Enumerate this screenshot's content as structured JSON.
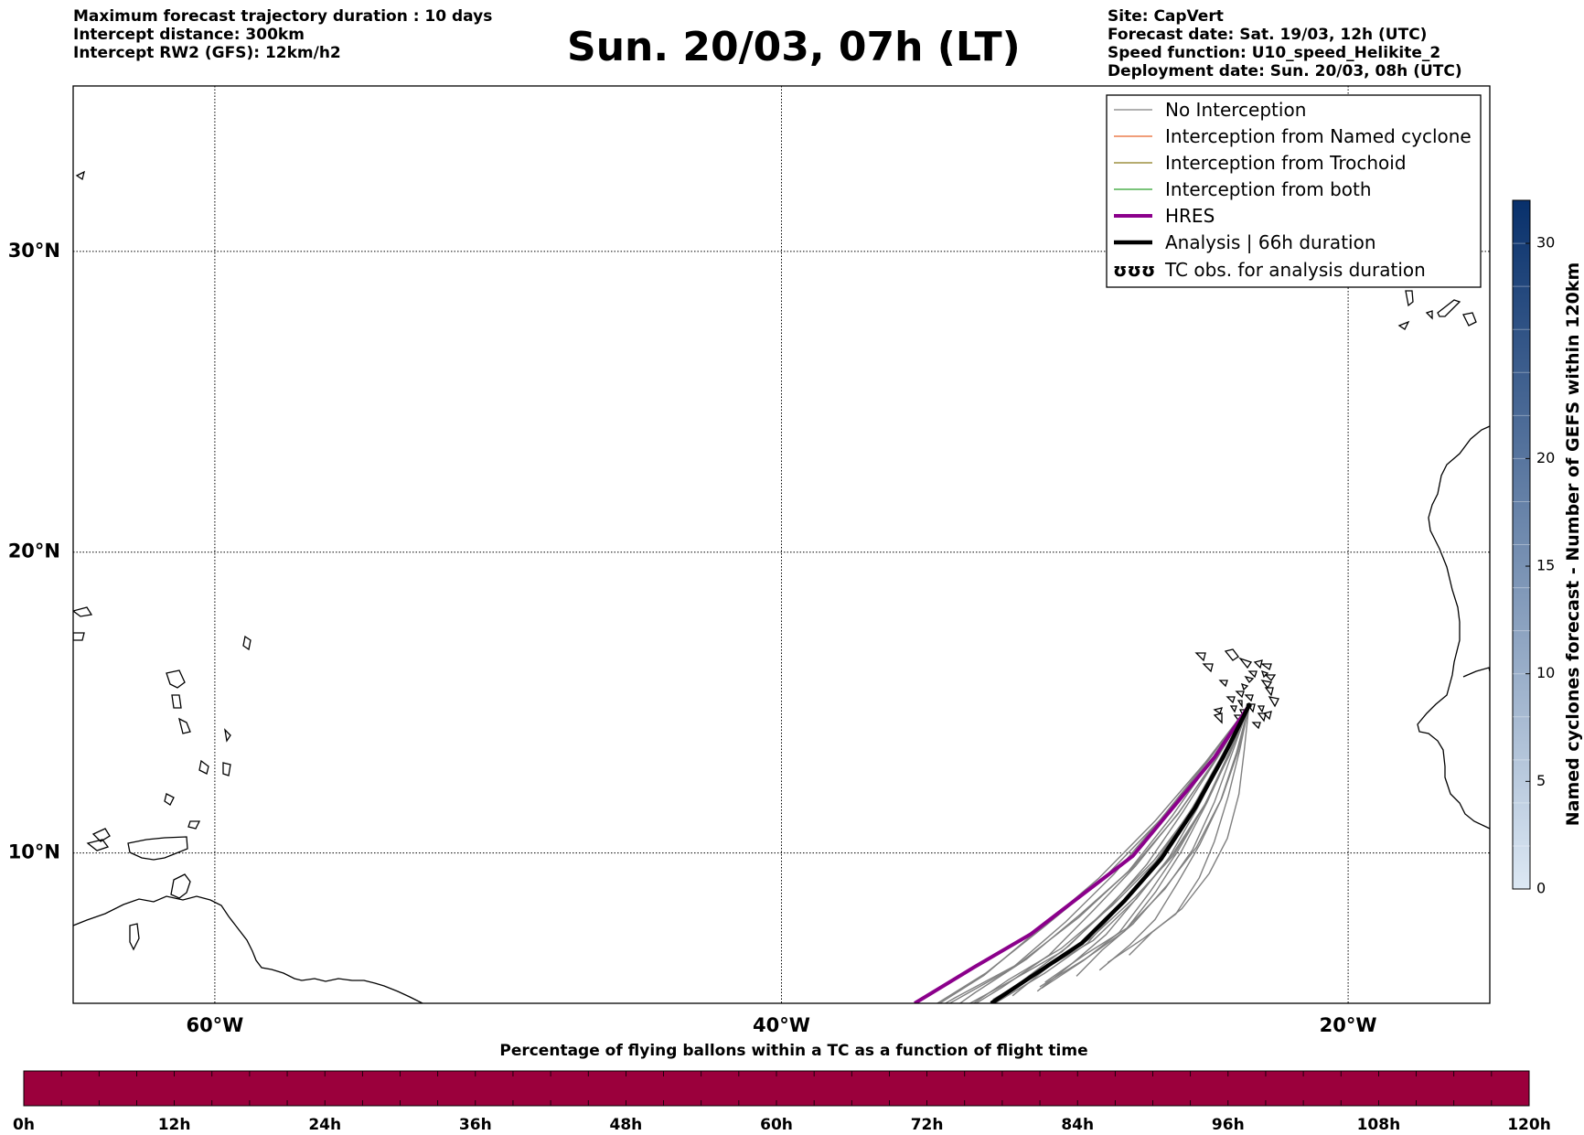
{
  "header": {
    "left": [
      "Maximum forecast trajectory duration : 10 days",
      "Intercept distance: 300km",
      "Intercept RW2 (GFS):  12km/h2"
    ],
    "title": "Sun. 20/03, 07h (LT)",
    "right": [
      "Site: CapVert",
      "Forecast date: Sat. 19/03, 12h (UTC)",
      "Speed function: U10_speed_Helikite_2",
      "Deployment date: Sun. 20/03, 08h (UTC)"
    ]
  },
  "map": {
    "lat_labels": [
      "30°N",
      "20°N",
      "10°N"
    ],
    "lon_labels": [
      "60°W",
      "40°W",
      "20°W"
    ],
    "lat_values": [
      30,
      20,
      10
    ],
    "lon_values": [
      -60,
      -40,
      -20
    ],
    "extent": {
      "lon_min": -65,
      "lon_max": -15,
      "lat_min": 5,
      "lat_max": 35.5
    },
    "grid": true,
    "launch_site": {
      "lon": -23.5,
      "lat": 14.9
    }
  },
  "legend": {
    "placement": "top-right",
    "items": [
      {
        "label": "No Interception",
        "color": "#808080",
        "style": "thin"
      },
      {
        "label": "Interception from Named cyclone",
        "color": "#e8632b",
        "style": "thin"
      },
      {
        "label": "Interception from Trochoid",
        "color": "#8a7a1a",
        "style": "thin"
      },
      {
        "label": "Interception from both",
        "color": "#2ca02c",
        "style": "thin"
      },
      {
        "label": "HRES",
        "color": "#8b008b",
        "style": "thick"
      },
      {
        "label": "Analysis | 66h duration",
        "color": "#000000",
        "style": "thick"
      },
      {
        "label": "TC obs. for analysis duration",
        "color": "#000000",
        "style": "symbol",
        "symbol": "ʊʊʊ"
      }
    ]
  },
  "colorbar": {
    "label": "Named cyclones forecast - Number of GEFS within 120km",
    "ticks": [
      "0",
      "5",
      "10",
      "15",
      "20",
      "30"
    ],
    "tick_values": [
      0,
      5,
      10,
      15,
      20,
      30
    ],
    "min": 0,
    "max": 32,
    "color_low": "#dce8f4",
    "color_high": "#08306b"
  },
  "time_bar": {
    "title": "Percentage of flying ballons within a TC as a function of flight time",
    "ticks": [
      "0h",
      "12h",
      "24h",
      "36h",
      "48h",
      "60h",
      "72h",
      "84h",
      "96h",
      "108h",
      "120h"
    ],
    "fill_color": "#9b003c"
  },
  "chart_data": {
    "type": "line",
    "title": "Sun. 20/03, 07h (LT)",
    "series": [
      {
        "name": "HRES",
        "x": [
          -23.5,
          -24.7,
          -26.1,
          -27.6,
          -29.4,
          -31.2,
          -33.2,
          -35.3
        ],
        "y": [
          14.9,
          13.2,
          11.6,
          9.9,
          8.6,
          7.3,
          6.2,
          5.0
        ]
      },
      {
        "name": "Analysis | 66h duration",
        "x": [
          -23.5,
          -24.4,
          -25.4,
          -26.6,
          -27.9,
          -29.4,
          -31.0,
          -32.6
        ],
        "y": [
          14.9,
          13.2,
          11.5,
          9.8,
          8.4,
          7.0,
          6.0,
          5.0
        ]
      }
    ]
  }
}
